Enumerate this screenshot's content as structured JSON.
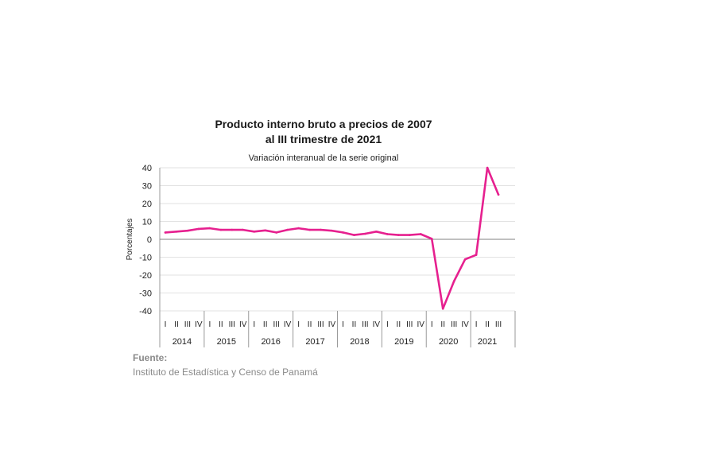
{
  "title_line1": "Producto interno bruto a precios de 2007",
  "title_line2": "al III trimestre de 2021",
  "subtitle": "Variación interanual de la serie original",
  "source": {
    "label": "Fuente:",
    "text": "Instituto de Estadística y Censo de Panamá"
  },
  "colors": {
    "series": "#e6208f",
    "grid": "#d9d9d9",
    "zero_line": "#808080"
  },
  "chart_data": {
    "type": "line",
    "title": "Producto interno bruto a precios de 2007 al III trimestre de 2021",
    "subtitle": "Variación interanual de la serie original",
    "xlabel": "",
    "ylabel": "Porcentajes",
    "ylim": [
      -40,
      40
    ],
    "yticks": [
      40,
      30,
      20,
      10,
      0,
      -10,
      -20,
      -30,
      -40
    ],
    "grid": true,
    "years": [
      "2014",
      "2015",
      "2016",
      "2017",
      "2018",
      "2019",
      "2020",
      "2021"
    ],
    "quarter_labels": [
      "I",
      "II",
      "III",
      "IV"
    ],
    "x": [
      "2014-I",
      "2014-II",
      "2014-III",
      "2014-IV",
      "2015-I",
      "2015-II",
      "2015-III",
      "2015-IV",
      "2016-I",
      "2016-II",
      "2016-III",
      "2016-IV",
      "2017-I",
      "2017-II",
      "2017-III",
      "2017-IV",
      "2018-I",
      "2018-II",
      "2018-III",
      "2018-IV",
      "2019-I",
      "2019-II",
      "2019-III",
      "2019-IV",
      "2020-I",
      "2020-II",
      "2020-III",
      "2020-IV",
      "2021-I",
      "2021-II",
      "2021-III"
    ],
    "series": [
      {
        "values": [
          3.8,
          4.3,
          4.8,
          5.8,
          6.2,
          5.3,
          5.3,
          5.3,
          4.3,
          5.0,
          3.8,
          5.3,
          6.2,
          5.3,
          5.3,
          4.8,
          3.8,
          2.4,
          3.1,
          4.3,
          2.9,
          2.4,
          2.4,
          2.9,
          0.3,
          -38.8,
          -23.4,
          -11.2,
          -8.7,
          40.0,
          25.0
        ]
      }
    ]
  }
}
